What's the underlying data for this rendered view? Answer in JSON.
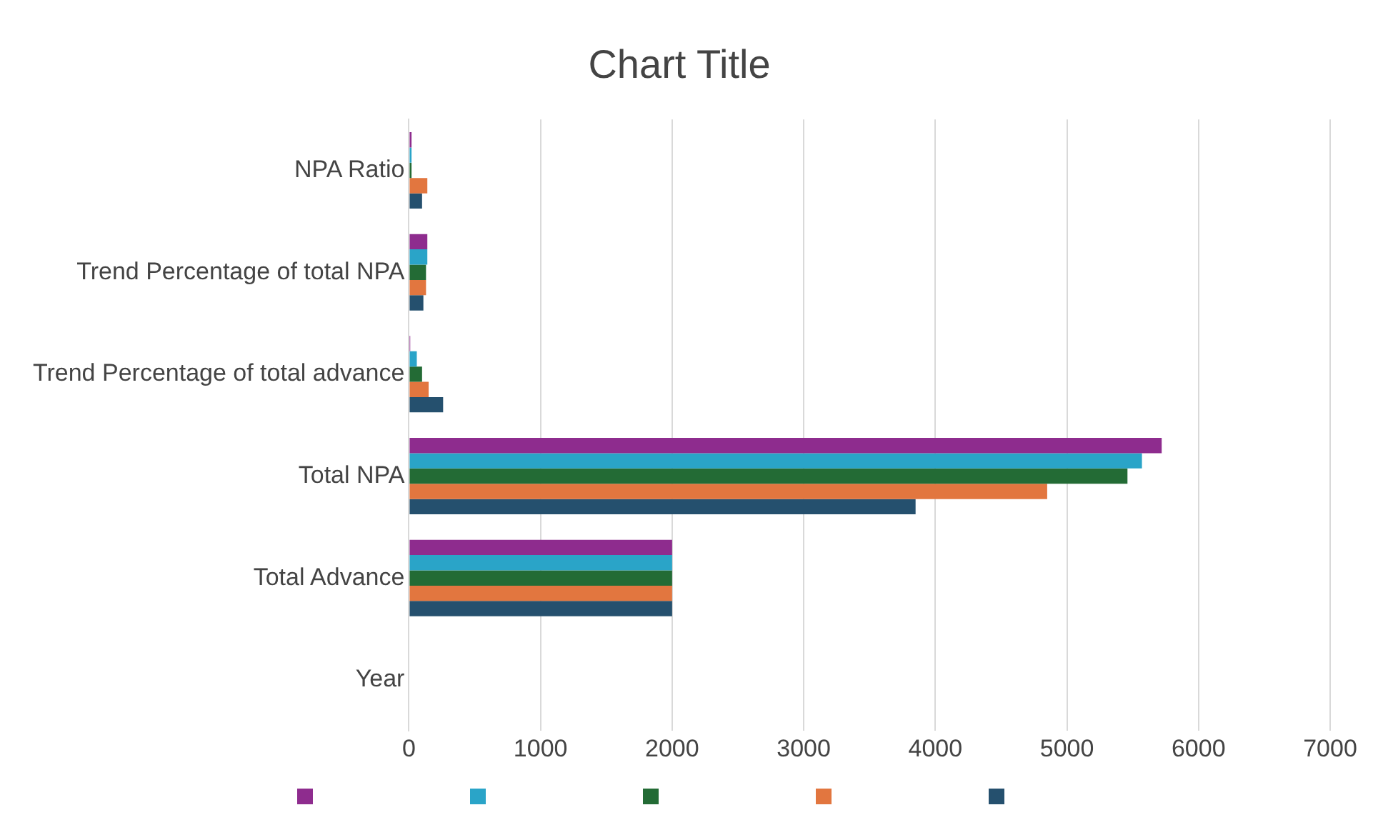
{
  "chart_data": {
    "type": "bar",
    "orientation": "horizontal",
    "title": "Chart Title",
    "categories": [
      "NPA Ratio",
      "Trend Percentage of total NPA",
      "Trend Percentage of total advance",
      "Total NPA",
      "Total Advance",
      "Year"
    ],
    "series": [
      {
        "color": "#8e2c8e",
        "values": [
          20,
          140,
          10,
          5720,
          2000,
          null
        ]
      },
      {
        "color": "#2aa4c8",
        "values": [
          20,
          140,
          60,
          5570,
          2000,
          null
        ]
      },
      {
        "color": "#236b35",
        "values": [
          20,
          130,
          100,
          5460,
          2000,
          null
        ]
      },
      {
        "color": "#e2763f",
        "values": [
          140,
          130,
          150,
          4850,
          2000,
          null
        ]
      },
      {
        "color": "#25506e",
        "values": [
          100,
          110,
          260,
          3850,
          2000,
          null
        ]
      }
    ],
    "xlim": [
      0,
      7000
    ],
    "xticks": [
      0,
      1000,
      2000,
      3000,
      4000,
      5000,
      6000,
      7000
    ],
    "grid": "x"
  }
}
